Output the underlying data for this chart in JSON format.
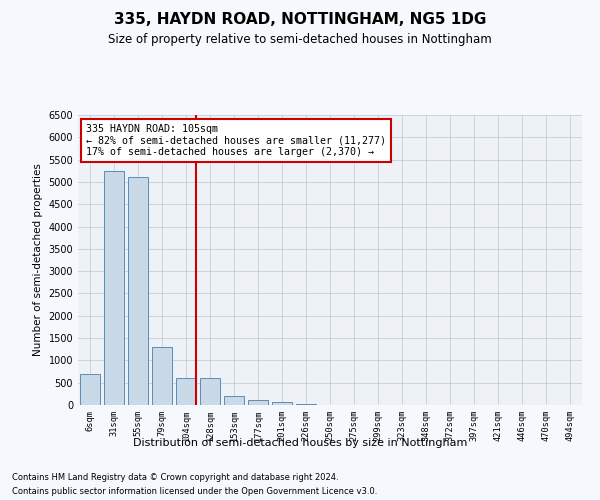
{
  "title": "335, HAYDN ROAD, NOTTINGHAM, NG5 1DG",
  "subtitle": "Size of property relative to semi-detached houses in Nottingham",
  "xlabel": "Distribution of semi-detached houses by size in Nottingham",
  "ylabel": "Number of semi-detached properties",
  "categories": [
    "6sqm",
    "31sqm",
    "55sqm",
    "79sqm",
    "104sqm",
    "128sqm",
    "153sqm",
    "177sqm",
    "201sqm",
    "226sqm",
    "250sqm",
    "275sqm",
    "299sqm",
    "323sqm",
    "348sqm",
    "372sqm",
    "397sqm",
    "421sqm",
    "446sqm",
    "470sqm",
    "494sqm"
  ],
  "values": [
    700,
    5250,
    5100,
    1300,
    600,
    600,
    200,
    120,
    60,
    30,
    10,
    5,
    0,
    0,
    0,
    0,
    0,
    0,
    0,
    0,
    0
  ],
  "property_index": 4,
  "property_value": 105,
  "bar_color": "#c9d9e8",
  "bar_edge_color": "#5b8db8",
  "highlight_line_color": "#cc0000",
  "annotation_text": "335 HAYDN ROAD: 105sqm\n← 82% of semi-detached houses are smaller (11,277)\n17% of semi-detached houses are larger (2,370) →",
  "ylim": [
    0,
    6500
  ],
  "yticks": [
    0,
    500,
    1000,
    1500,
    2000,
    2500,
    3000,
    3500,
    4000,
    4500,
    5000,
    5500,
    6000,
    6500
  ],
  "footer1": "Contains HM Land Registry data © Crown copyright and database right 2024.",
  "footer2": "Contains public sector information licensed under the Open Government Licence v3.0.",
  "fig_bg_color": "#f5f8fc",
  "plot_bg_color": "#eef2f7"
}
